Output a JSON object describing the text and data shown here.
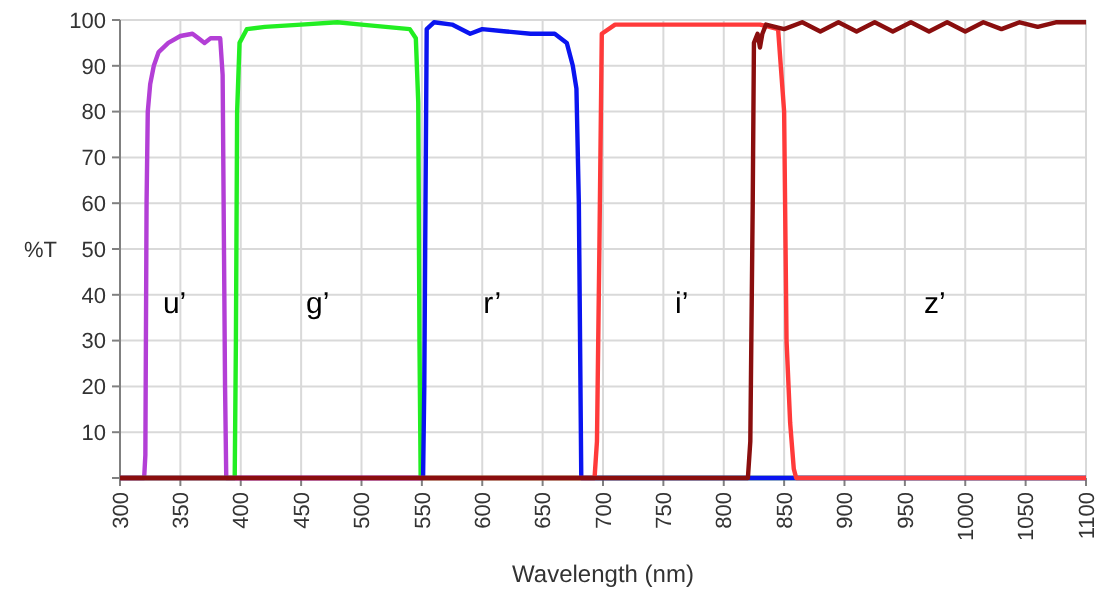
{
  "chart_data": {
    "type": "line",
    "xlabel": "Wavelength (nm)",
    "ylabel": "%T",
    "xlim": [
      300,
      1100
    ],
    "ylim": [
      0,
      100
    ],
    "xticks": [
      300,
      350,
      400,
      450,
      500,
      550,
      600,
      650,
      700,
      750,
      800,
      850,
      900,
      950,
      1000,
      1050,
      1100
    ],
    "yticks": [
      {
        "value": 0,
        "label": null
      },
      10,
      20,
      30,
      40,
      50,
      60,
      70,
      80,
      90,
      100
    ],
    "grid": true,
    "marker": "none",
    "line_style": "solid",
    "series": [
      {
        "color": "#b33fd6",
        "x": [
          300,
          320,
          321,
          322,
          323,
          325,
          328,
          332,
          340,
          350,
          360,
          365,
          370,
          375,
          380,
          383,
          385,
          387,
          388,
          1100
        ],
        "values": [
          0,
          0,
          5,
          60,
          80,
          86,
          90,
          93,
          95,
          96.5,
          97,
          96,
          95,
          96,
          96,
          96,
          88,
          20,
          0,
          0
        ]
      },
      {
        "color": "#22ee22",
        "x": [
          300,
          395,
          396,
          397,
          399,
          405,
          420,
          450,
          480,
          500,
          520,
          540,
          545,
          547,
          548,
          549,
          1100
        ],
        "values": [
          0,
          0,
          30,
          80,
          95,
          98,
          98.5,
          99,
          99.5,
          99,
          98.5,
          98,
          96,
          82,
          30,
          0,
          0
        ]
      },
      {
        "color": "#0a14f0",
        "x": [
          300,
          551,
          552,
          553,
          554,
          560,
          575,
          590,
          600,
          620,
          640,
          660,
          670,
          675,
          678,
          680,
          682,
          1100
        ],
        "values": [
          0,
          0,
          20,
          60,
          98,
          99.5,
          99,
          97,
          98,
          97.5,
          97,
          97,
          95,
          90,
          85,
          60,
          0,
          0
        ]
      },
      {
        "color": "#ff3a3a",
        "x": [
          300,
          693,
          695,
          697,
          699,
          710,
          750,
          800,
          830,
          845,
          850,
          852,
          855,
          858,
          860,
          1100
        ],
        "values": [
          0,
          0,
          8,
          50,
          97,
          99,
          99,
          99,
          99,
          98,
          80,
          30,
          12,
          2,
          0,
          0
        ]
      },
      {
        "color": "#8a0e0e",
        "x": [
          300,
          820,
          822,
          824,
          825,
          828,
          830,
          832,
          835,
          850,
          865,
          880,
          895,
          910,
          925,
          940,
          955,
          970,
          985,
          1000,
          1015,
          1030,
          1045,
          1060,
          1075,
          1090,
          1100
        ],
        "values": [
          0,
          0,
          8,
          60,
          95,
          97,
          94,
          97,
          99,
          98,
          99.5,
          97.5,
          99.5,
          97.5,
          99.5,
          97.5,
          99.5,
          97.5,
          99.5,
          97.5,
          99.5,
          98,
          99.5,
          98.5,
          99.5,
          99.5,
          99.5
        ]
      }
    ],
    "annotations": [
      "u’",
      "g’",
      "r’",
      "i’",
      "z’"
    ]
  }
}
